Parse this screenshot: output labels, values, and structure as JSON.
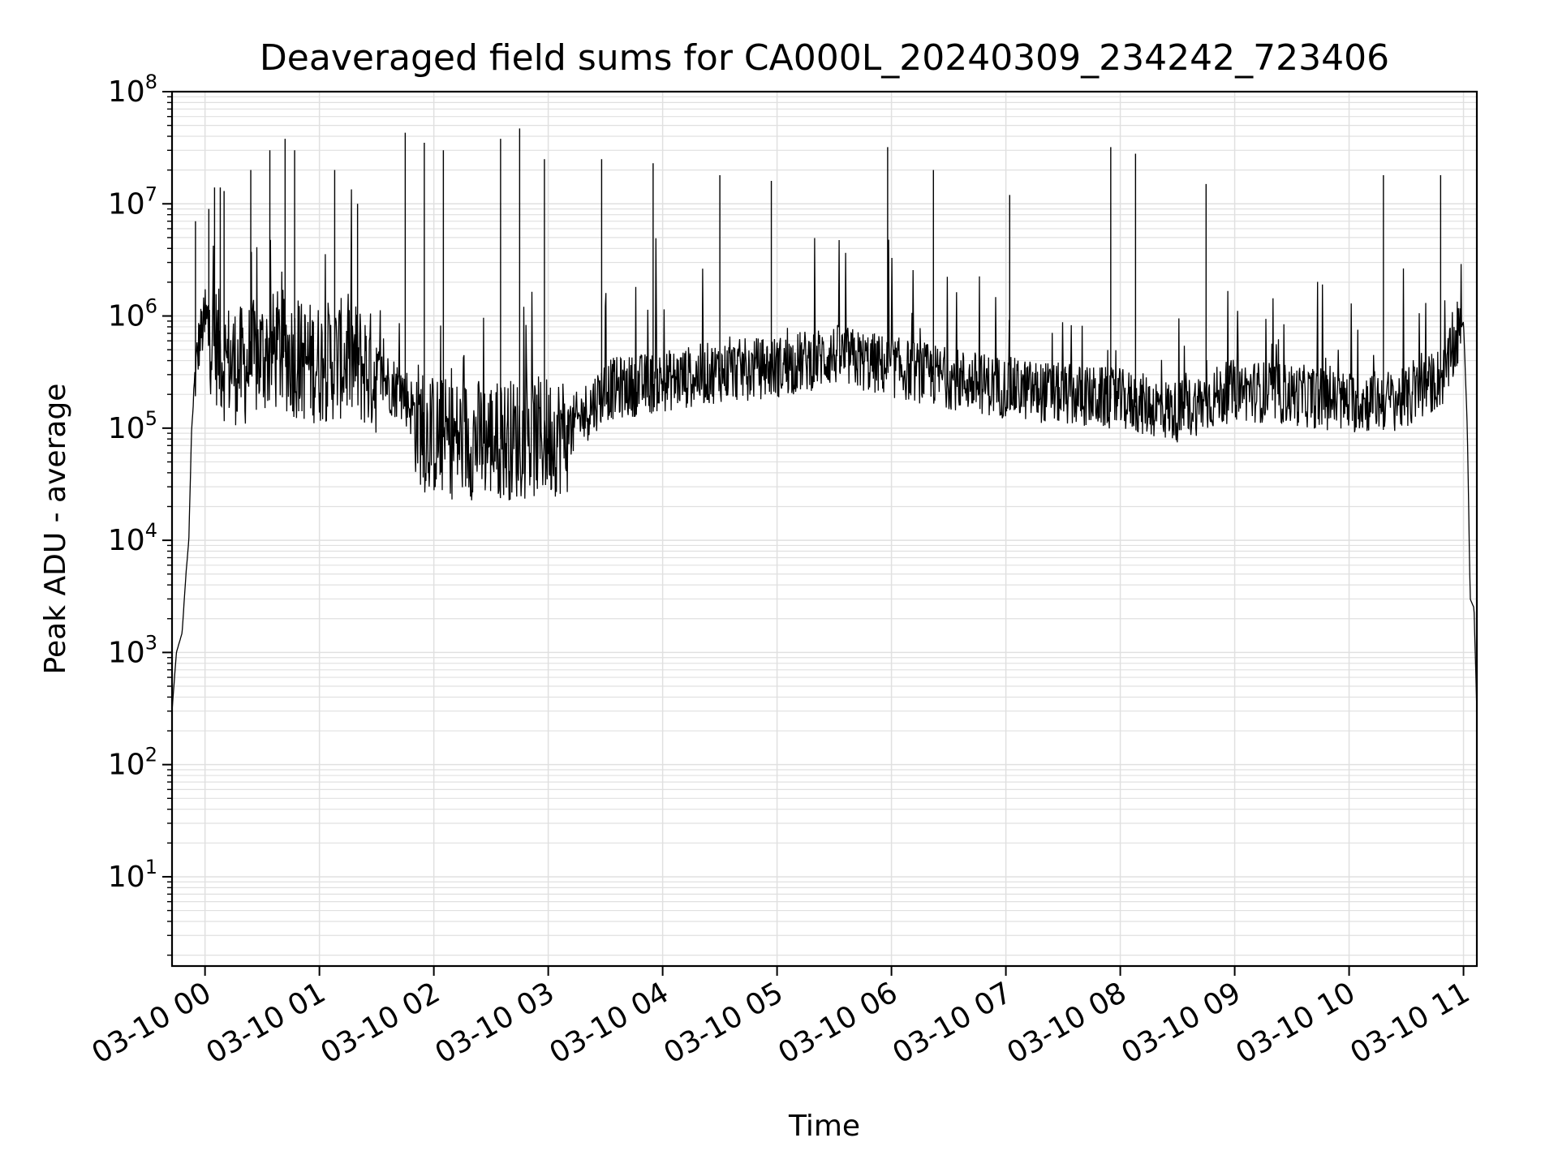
{
  "chart_data": {
    "type": "line",
    "title": "Deaveraged field sums for CA000L_20240309_234242_723406",
    "xlabel": "Time",
    "ylabel": "Peak ADU - average",
    "yscale": "log",
    "ylim": [
      1.6,
      100000000
    ],
    "xlim": [
      "2024-03-09T23:42:42",
      "2024-03-10T11:07:00"
    ],
    "grid": true,
    "line_color": "#000000",
    "grid_color": "#e0e0e0",
    "x_ticks": [
      {
        "label": "03-10 00",
        "value": "2024-03-10T00:00:00"
      },
      {
        "label": "03-10 01",
        "value": "2024-03-10T01:00:00"
      },
      {
        "label": "03-10 02",
        "value": "2024-03-10T02:00:00"
      },
      {
        "label": "03-10 03",
        "value": "2024-03-10T03:00:00"
      },
      {
        "label": "03-10 04",
        "value": "2024-03-10T04:00:00"
      },
      {
        "label": "03-10 05",
        "value": "2024-03-10T05:00:00"
      },
      {
        "label": "03-10 06",
        "value": "2024-03-10T06:00:00"
      },
      {
        "label": "03-10 07",
        "value": "2024-03-10T07:00:00"
      },
      {
        "label": "03-10 08",
        "value": "2024-03-10T08:00:00"
      },
      {
        "label": "03-10 09",
        "value": "2024-03-10T09:00:00"
      },
      {
        "label": "03-10 10",
        "value": "2024-03-10T10:00:00"
      },
      {
        "label": "03-10 11",
        "value": "2024-03-10T11:00:00"
      }
    ],
    "y_ticks": [
      {
        "base": "10",
        "exp": "1",
        "value": 10
      },
      {
        "base": "10",
        "exp": "2",
        "value": 100
      },
      {
        "base": "10",
        "exp": "3",
        "value": 1000
      },
      {
        "base": "10",
        "exp": "4",
        "value": 10000
      },
      {
        "base": "10",
        "exp": "5",
        "value": 100000
      },
      {
        "base": "10",
        "exp": "6",
        "value": 1000000
      },
      {
        "base": "10",
        "exp": "7",
        "value": 10000000
      },
      {
        "base": "10",
        "exp": "8",
        "value": 100000000
      }
    ],
    "series": [
      {
        "x": [
          "2024-03-09T23:42:42",
          "2024-03-09T23:45:00",
          "2024-03-09T23:48:00",
          "2024-03-09T23:50:00",
          "2024-03-09T23:51:30",
          "2024-03-09T23:53:00",
          "2024-03-09T23:55:00",
          "2024-03-09T23:57:00",
          "2024-03-09T23:59:00",
          "2024-03-10T00:03:00",
          "2024-03-10T00:10:00",
          "2024-03-10T00:20:00",
          "2024-03-10T00:30:00",
          "2024-03-10T00:40:00",
          "2024-03-10T00:50:00",
          "2024-03-10T01:00:00",
          "2024-03-10T01:15:00",
          "2024-03-10T01:30:00",
          "2024-03-10T01:45:00",
          "2024-03-10T01:55:00",
          "2024-03-10T02:10:00",
          "2024-03-10T02:30:00",
          "2024-03-10T02:50:00",
          "2024-03-10T03:10:00",
          "2024-03-10T03:30:00",
          "2024-03-10T04:00:00",
          "2024-03-10T04:30:00",
          "2024-03-10T05:00:00",
          "2024-03-10T05:30:00",
          "2024-03-10T06:00:00",
          "2024-03-10T06:30:00",
          "2024-03-10T07:00:00",
          "2024-03-10T07:30:00",
          "2024-03-10T08:00:00",
          "2024-03-10T08:30:00",
          "2024-03-10T09:00:00",
          "2024-03-10T09:30:00",
          "2024-03-10T10:00:00",
          "2024-03-10T10:30:00",
          "2024-03-10T10:50:00",
          "2024-03-10T10:58:00",
          "2024-03-10T11:00:00",
          "2024-03-10T11:02:00",
          "2024-03-10T11:03:30",
          "2024-03-10T11:05:30",
          "2024-03-10T11:07:00"
        ],
        "y": [
          300,
          1000,
          1500,
          5000,
          10000,
          100000,
          300000,
          600000,
          800000,
          700000,
          400000,
          350000,
          450000,
          500000,
          400000,
          380000,
          420000,
          300000,
          200000,
          90000,
          80000,
          80000,
          80000,
          90000,
          220000,
          260000,
          320000,
          350000,
          450000,
          350000,
          280000,
          230000,
          200000,
          180000,
          140000,
          220000,
          200000,
          170000,
          180000,
          300000,
          700000,
          900000,
          100000,
          3000,
          2500,
          300
        ]
      }
    ],
    "spikes": [
      {
        "x": "2024-03-09T23:55:00",
        "y": 7000000
      },
      {
        "x": "2024-03-10T00:02:00",
        "y": 9000000
      },
      {
        "x": "2024-03-10T00:05:00",
        "y": 14000000
      },
      {
        "x": "2024-03-10T00:08:00",
        "y": 14000000
      },
      {
        "x": "2024-03-10T00:10:00",
        "y": 13000000
      },
      {
        "x": "2024-03-10T00:24:00",
        "y": 20000000
      },
      {
        "x": "2024-03-10T00:34:00",
        "y": 30000000
      },
      {
        "x": "2024-03-10T00:42:00",
        "y": 38000000
      },
      {
        "x": "2024-03-10T00:47:00",
        "y": 30000000
      },
      {
        "x": "2024-03-10T01:08:00",
        "y": 20000000
      },
      {
        "x": "2024-03-10T01:20:00",
        "y": 10000000
      },
      {
        "x": "2024-03-10T01:45:00",
        "y": 43000000
      },
      {
        "x": "2024-03-10T01:55:00",
        "y": 35000000
      },
      {
        "x": "2024-03-10T02:05:00",
        "y": 30000000
      },
      {
        "x": "2024-03-10T02:35:00",
        "y": 38000000
      },
      {
        "x": "2024-03-10T02:45:00",
        "y": 47000000
      },
      {
        "x": "2024-03-10T02:58:00",
        "y": 25000000
      },
      {
        "x": "2024-03-10T03:28:00",
        "y": 25000000
      },
      {
        "x": "2024-03-10T03:55:00",
        "y": 23000000
      },
      {
        "x": "2024-03-10T04:30:00",
        "y": 18000000
      },
      {
        "x": "2024-03-10T04:57:00",
        "y": 16000000
      },
      {
        "x": "2024-03-10T05:58:00",
        "y": 32000000
      },
      {
        "x": "2024-03-10T06:22:00",
        "y": 20000000
      },
      {
        "x": "2024-03-10T07:02:00",
        "y": 12000000
      },
      {
        "x": "2024-03-10T07:55:00",
        "y": 32000000
      },
      {
        "x": "2024-03-10T08:08:00",
        "y": 28000000
      },
      {
        "x": "2024-03-10T08:45:00",
        "y": 15000000
      },
      {
        "x": "2024-03-10T10:18:00",
        "y": 18000000
      },
      {
        "x": "2024-03-10T10:48:00",
        "y": 18000000
      }
    ]
  }
}
